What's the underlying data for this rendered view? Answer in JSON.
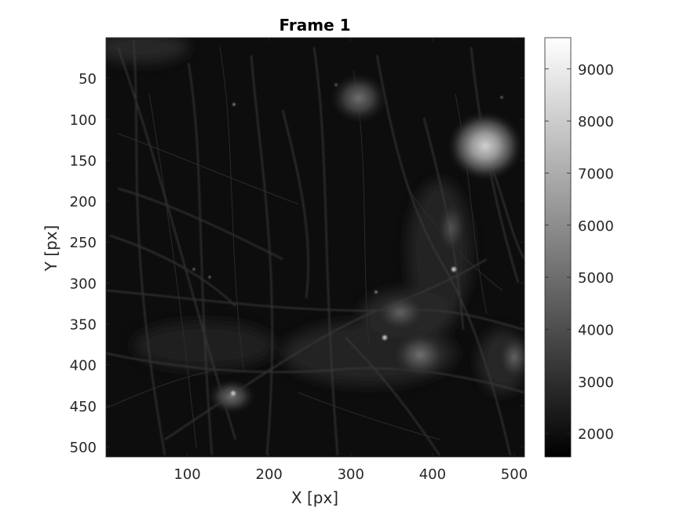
{
  "chart_data": {
    "type": "heatmap",
    "title": "Frame 1",
    "xlabel": "X [px]",
    "ylabel": "Y [px]",
    "xlim": [
      1,
      512
    ],
    "ylim": [
      1,
      512
    ],
    "y_reversed": true,
    "x_ticks": [
      100,
      200,
      300,
      400,
      500
    ],
    "y_ticks": [
      50,
      100,
      150,
      200,
      250,
      300,
      350,
      400,
      450,
      500
    ],
    "colormap": "gray",
    "colorbar": {
      "range": [
        1550,
        9600
      ],
      "ticks": [
        2000,
        3000,
        4000,
        5000,
        6000,
        7000,
        8000,
        9000
      ]
    },
    "content": "fluorescence microscopy frame: dark background with faint bright neuronal processes and cell bodies"
  }
}
